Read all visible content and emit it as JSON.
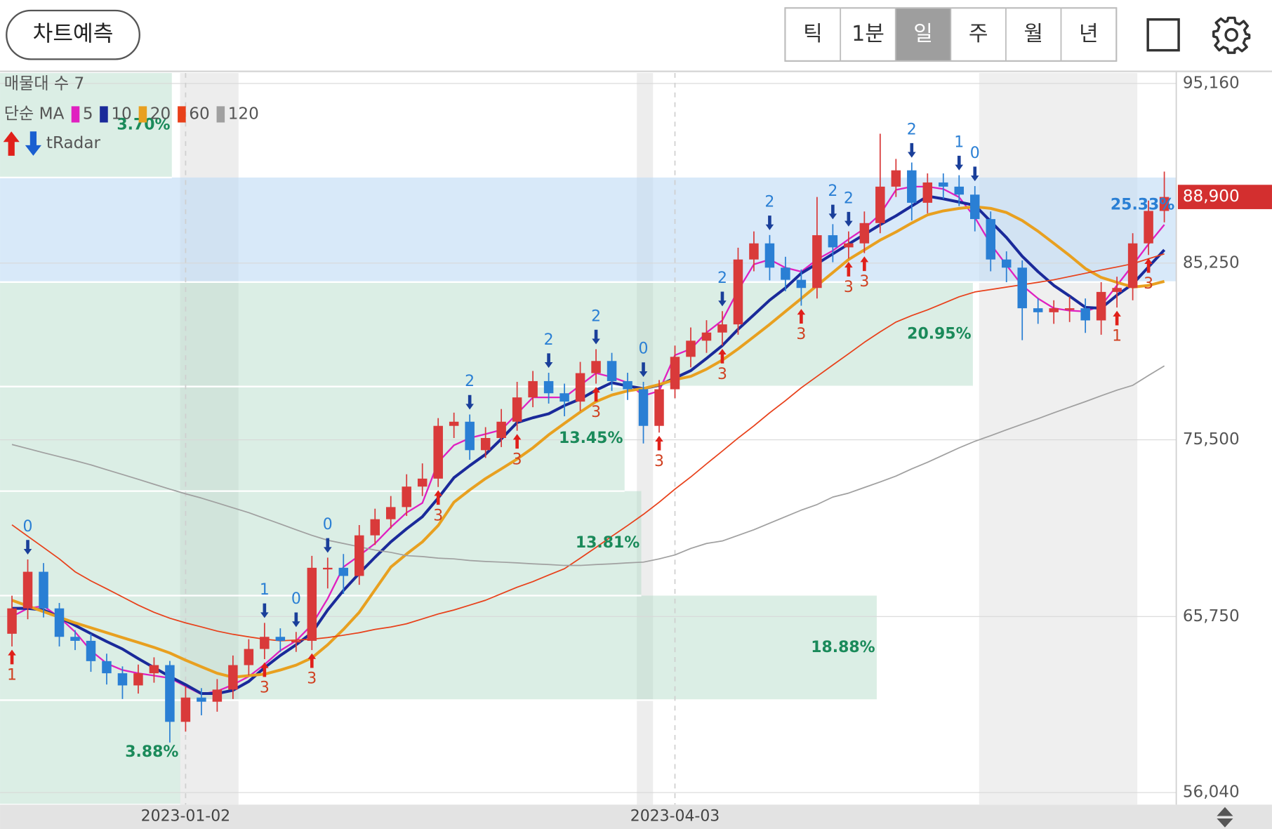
{
  "header": {
    "button": "차트예측",
    "tabs": [
      "틱",
      "1분",
      "일",
      "주",
      "월",
      "년"
    ],
    "selected_tab": "일"
  },
  "chart_data": {
    "type": "candlestick",
    "categories": [
      null,
      null,
      null,
      null,
      null,
      null,
      null,
      null,
      null,
      null,
      null,
      "2023-01-02",
      null,
      null,
      null,
      null,
      null,
      null,
      null,
      null,
      null,
      null,
      null,
      null,
      null,
      null,
      null,
      null,
      null,
      null,
      null,
      null,
      null,
      null,
      null,
      null,
      null,
      null,
      null,
      null,
      null,
      null,
      "2023-04-03",
      null,
      null,
      null,
      null,
      null,
      null,
      null,
      null,
      null,
      null,
      null,
      null,
      null,
      null,
      null,
      null,
      null,
      null,
      null,
      null,
      null,
      null,
      null,
      null,
      null,
      null,
      null,
      null,
      null,
      null,
      null
    ],
    "open": [
      64800,
      66200,
      68220,
      66200,
      64630,
      64410,
      63290,
      62620,
      61950,
      62620,
      63070,
      59940,
      61280,
      61050,
      61720,
      63070,
      63960,
      64630,
      64410,
      64410,
      68440,
      68440,
      67990,
      70230,
      71120,
      71790,
      72920,
      73360,
      76270,
      76500,
      74930,
      75600,
      76500,
      77840,
      78740,
      78070,
      77610,
      79180,
      79850,
      78740,
      78290,
      76270,
      78290,
      80080,
      80970,
      81420,
      81870,
      85450,
      86340,
      85000,
      84330,
      83880,
      86790,
      86120,
      86340,
      87460,
      89470,
      90370,
      88580,
      89700,
      89470,
      89030,
      87680,
      85450,
      85000,
      82760,
      82540,
      82760,
      82760,
      82090,
      83660,
      83880,
      86340,
      88130
    ],
    "high": [
      66900,
      68900,
      68700,
      66500,
      65000,
      64800,
      63700,
      63000,
      63100,
      63500,
      63300,
      61900,
      61800,
      62300,
      63600,
      64500,
      65400,
      65100,
      64900,
      69100,
      69000,
      69200,
      70800,
      71700,
      72400,
      73600,
      74200,
      76700,
      77000,
      76900,
      76200,
      77200,
      78700,
      79300,
      79200,
      78600,
      79800,
      80500,
      80300,
      79200,
      78700,
      78800,
      80700,
      81700,
      82100,
      82600,
      86100,
      87000,
      86800,
      85600,
      84900,
      88900,
      87400,
      87000,
      88100,
      92390,
      91000,
      90800,
      90200,
      90200,
      90100,
      89500,
      88100,
      85900,
      85400,
      83300,
      83200,
      83400,
      83300,
      84200,
      84500,
      86900,
      88700,
      90300
    ],
    "low": [
      64100,
      65600,
      65700,
      64100,
      63900,
      62700,
      62000,
      61200,
      61500,
      62100,
      58800,
      59400,
      60300,
      60500,
      61200,
      62500,
      63400,
      63800,
      63800,
      63900,
      67300,
      67000,
      67500,
      69700,
      70600,
      71300,
      72400,
      72900,
      75600,
      74400,
      74500,
      75100,
      76000,
      77300,
      77500,
      76800,
      77100,
      78600,
      78200,
      77700,
      75300,
      75900,
      77800,
      79500,
      80300,
      80700,
      81300,
      84800,
      84300,
      83700,
      82900,
      83300,
      85300,
      85500,
      85800,
      86900,
      88900,
      87600,
      88000,
      88800,
      88400,
      87000,
      84800,
      84200,
      81000,
      81900,
      81900,
      82000,
      81400,
      81300,
      82800,
      83200,
      85700,
      87500
    ],
    "close": [
      66200,
      68220,
      66200,
      64630,
      64410,
      63290,
      62620,
      61950,
      62620,
      63070,
      59940,
      61280,
      61050,
      61720,
      63070,
      63960,
      64630,
      64410,
      64410,
      68440,
      68440,
      67990,
      70230,
      71120,
      71790,
      72920,
      73360,
      76270,
      76500,
      74930,
      75600,
      76500,
      77840,
      78740,
      78070,
      77610,
      79180,
      79850,
      78740,
      78290,
      76270,
      78290,
      80080,
      80970,
      81420,
      81870,
      85450,
      86340,
      85000,
      84330,
      83880,
      86790,
      86120,
      86340,
      87460,
      89470,
      90370,
      88580,
      89700,
      89470,
      89030,
      87680,
      85450,
      85000,
      82760,
      82540,
      82760,
      82760,
      82090,
      83660,
      83880,
      86340,
      88130,
      88900
    ],
    "up_color": "#d93a3a",
    "down_color": "#2a7fd4",
    "ma_label": "단순 MA",
    "series": [
      {
        "name": "5",
        "color": "#e020c0",
        "width": 2,
        "values": [
          65750,
          66200,
          66330,
          65710,
          64900,
          63870,
          63160,
          62800,
          62620,
          62490,
          62350,
          61900,
          61460,
          61630,
          61990,
          62440,
          63110,
          63870,
          64410,
          65300,
          66740,
          68490,
          69110,
          69780,
          70680,
          71480,
          72020,
          74260,
          75200,
          75600,
          75820,
          76050,
          76940,
          77840,
          77840,
          77840,
          78510,
          79180,
          78960,
          78650,
          77930,
          78200,
          80170,
          80520,
          81420,
          82090,
          83750,
          85180,
          85450,
          85000,
          84780,
          85450,
          85940,
          86570,
          87150,
          87950,
          89290,
          89470,
          89470,
          89340,
          88890,
          87770,
          86300,
          85140,
          84020,
          83300,
          82760,
          82630,
          82580,
          82900,
          84020,
          85140,
          86300,
          87370
        ]
      },
      {
        "name": "10",
        "color": "#1a2a9a",
        "width": 3.5,
        "values": [
          66200,
          66200,
          66110,
          65710,
          65260,
          64810,
          64370,
          63960,
          63430,
          62930,
          62440,
          61990,
          61500,
          61500,
          61680,
          62170,
          62930,
          63600,
          64190,
          64860,
          66110,
          67190,
          68130,
          69020,
          69870,
          70590,
          71260,
          72290,
          73410,
          74080,
          74700,
          75550,
          76450,
          76720,
          76940,
          77390,
          77750,
          78240,
          78650,
          78470,
          78330,
          78510,
          78910,
          79320,
          79990,
          80700,
          81600,
          82400,
          83210,
          83880,
          84690,
          85220,
          85760,
          86300,
          86830,
          87370,
          87860,
          88400,
          88940,
          88800,
          88620,
          88440,
          87550,
          86660,
          85630,
          84780,
          84020,
          83430,
          82810,
          82760,
          83480,
          84100,
          85040,
          85980
        ]
      },
      {
        "name": "20",
        "color": "#e8a020",
        "width": 3.5,
        "values": [
          66650,
          66330,
          66020,
          65710,
          65400,
          65130,
          64860,
          64590,
          64320,
          64050,
          63740,
          63340,
          62980,
          62620,
          62400,
          62490,
          62570,
          62800,
          63070,
          63470,
          64190,
          65040,
          65980,
          67230,
          68480,
          69200,
          69870,
          70770,
          72060,
          72740,
          73360,
          73900,
          74440,
          75060,
          75780,
          76410,
          77030,
          77610,
          77970,
          78200,
          78330,
          78550,
          78820,
          79000,
          79400,
          79900,
          80520,
          81190,
          81870,
          82580,
          83300,
          84020,
          84730,
          85450,
          85980,
          86520,
          86970,
          87460,
          87910,
          88130,
          88270,
          88360,
          88270,
          88040,
          87600,
          87010,
          86340,
          85670,
          84950,
          84460,
          84190,
          83930,
          84020,
          84240
        ]
      },
      {
        "name": "60",
        "color": "#e8401a",
        "width": 1.5,
        "values": [
          70810,
          70180,
          69560,
          68930,
          68220,
          67720,
          67280,
          66830,
          66380,
          65980,
          65660,
          65400,
          65180,
          64950,
          64770,
          64630,
          64500,
          64410,
          64450,
          64500,
          64590,
          64720,
          64860,
          65040,
          65170,
          65350,
          65620,
          65890,
          66110,
          66380,
          66650,
          67010,
          67370,
          67680,
          68040,
          68390,
          68970,
          69560,
          70180,
          70770,
          71390,
          72060,
          72780,
          73450,
          74170,
          74880,
          75600,
          76270,
          76990,
          77660,
          78370,
          79000,
          79630,
          80250,
          80880,
          81460,
          82000,
          82360,
          82670,
          83030,
          83390,
          83660,
          83790,
          83930,
          84060,
          84190,
          84330,
          84510,
          84690,
          84870,
          85040,
          85220,
          85490,
          85760
        ]
      },
      {
        "name": "120",
        "color": "#a0a0a0",
        "width": 1.5,
        "values": [
          75240,
          75020,
          74790,
          74570,
          74350,
          74120,
          73850,
          73590,
          73320,
          73050,
          72780,
          72520,
          72290,
          72020,
          71750,
          71480,
          71170,
          70860,
          70540,
          70230,
          69960,
          69780,
          69600,
          69420,
          69290,
          69110,
          69060,
          68970,
          68930,
          68840,
          68790,
          68750,
          68710,
          68660,
          68620,
          68570,
          68570,
          68620,
          68660,
          68710,
          68750,
          68930,
          69150,
          69510,
          69780,
          69920,
          70230,
          70540,
          70900,
          71260,
          71620,
          71930,
          72340,
          72560,
          72870,
          73180,
          73500,
          73900,
          74260,
          74660,
          75060,
          75420,
          75730,
          76050,
          76360,
          76670,
          76990,
          77300,
          77610,
          77930,
          78240,
          78510,
          79050,
          79580
        ]
      }
    ],
    "top_signals": [
      null,
      "0",
      null,
      null,
      null,
      null,
      null,
      null,
      null,
      null,
      null,
      null,
      null,
      null,
      null,
      null,
      "1",
      null,
      "0",
      null,
      "0",
      null,
      null,
      null,
      null,
      null,
      null,
      null,
      null,
      "2",
      null,
      null,
      null,
      null,
      "2",
      null,
      null,
      "2",
      null,
      null,
      "0",
      null,
      null,
      null,
      null,
      "2",
      null,
      null,
      "2",
      null,
      null,
      null,
      "2",
      "2",
      null,
      null,
      null,
      "2",
      null,
      null,
      "1",
      "0",
      null,
      null,
      null,
      null,
      null,
      null,
      null,
      null,
      null,
      null,
      null,
      null
    ],
    "bottom_signals": [
      "1",
      null,
      null,
      null,
      null,
      null,
      null,
      null,
      null,
      null,
      null,
      null,
      null,
      null,
      null,
      null,
      "3",
      null,
      null,
      "3",
      null,
      null,
      null,
      null,
      null,
      null,
      null,
      "3",
      null,
      null,
      null,
      null,
      "3",
      null,
      null,
      null,
      null,
      "3",
      null,
      null,
      null,
      "3",
      null,
      null,
      null,
      "3",
      null,
      null,
      null,
      null,
      "3",
      null,
      null,
      "3",
      "3",
      null,
      null,
      null,
      null,
      null,
      null,
      null,
      null,
      null,
      null,
      null,
      null,
      null,
      null,
      null,
      "1",
      null,
      "3",
      null
    ],
    "radar_label": "tRadar",
    "volume_profile": {
      "title": "매물대 수 7",
      "bands": [
        {
          "low": 55370,
          "high": 61137,
          "value": 3.88,
          "label": "3.88%"
        },
        {
          "low": 61137,
          "high": 66904,
          "value": 18.88,
          "label": "18.88%"
        },
        {
          "low": 66904,
          "high": 72671,
          "value": 13.81,
          "label": "13.81%"
        },
        {
          "low": 72671,
          "high": 78439,
          "value": 13.45,
          "label": "13.45%"
        },
        {
          "low": 78439,
          "high": 84206,
          "value": 20.95,
          "label": "20.95%"
        },
        {
          "low": 84206,
          "high": 89973,
          "value": 25.33,
          "label": "25.33%"
        },
        {
          "low": 89973,
          "high": 95740,
          "value": 3.7,
          "label": "3.70%"
        }
      ]
    },
    "last_price": {
      "value": 88900,
      "label": "88,900"
    },
    "ylim": [
      55370,
      95740
    ],
    "yticks": [
      {
        "value": 56040,
        "label": "56,040"
      },
      {
        "value": 65750,
        "label": "65,750"
      },
      {
        "value": 75500,
        "label": "75,500"
      },
      {
        "value": 85250,
        "label": "85,250"
      },
      {
        "value": 95160,
        "label": "95,160"
      }
    ],
    "grid": true
  }
}
